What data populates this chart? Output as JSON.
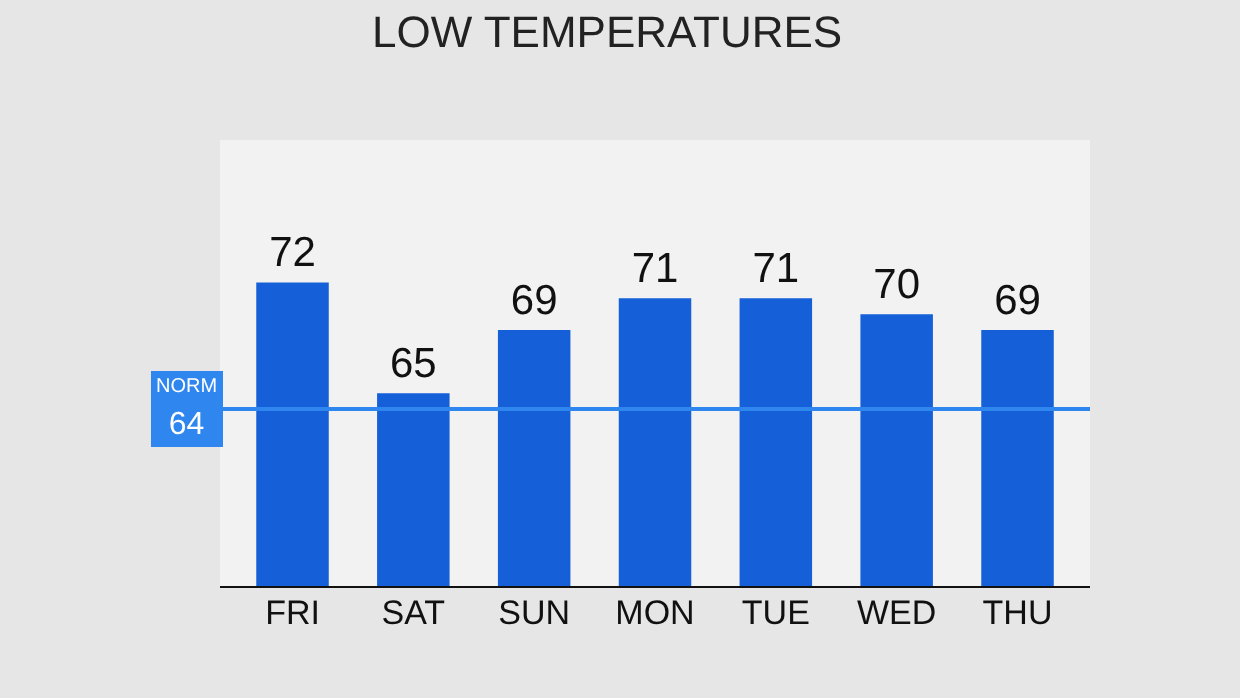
{
  "chart_data": {
    "type": "bar",
    "title": "LOW TEMPERATURES",
    "categories": [
      "FRI",
      "SAT",
      "SUN",
      "MON",
      "TUE",
      "WED",
      "THU"
    ],
    "values": [
      72,
      65,
      69,
      71,
      71,
      70,
      69
    ],
    "color": "#1560d8",
    "ylim": [
      52.7,
      81
    ],
    "data_labels": true,
    "grid": false,
    "legend": false,
    "ref_lines": [
      {
        "axis": "y",
        "value": 64,
        "label": "NORM 64",
        "color": "#2f86ee"
      }
    ]
  }
}
